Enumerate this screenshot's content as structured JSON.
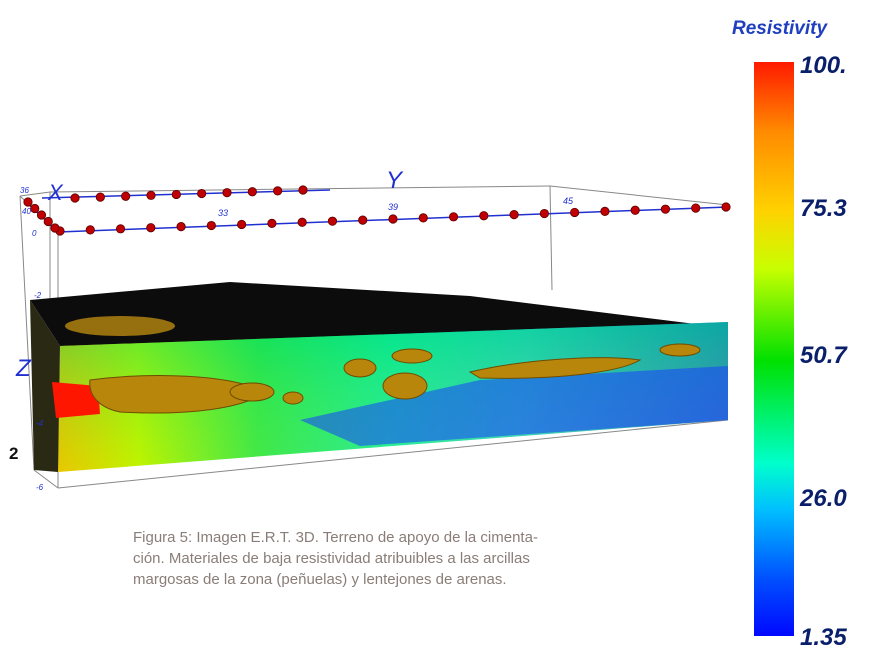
{
  "figure": {
    "axis_letters": {
      "x": "X",
      "y": "Y",
      "z": "Z"
    },
    "electrode_labels": [
      "33",
      "39",
      "45"
    ],
    "depth_labels": [
      "36",
      "40",
      "0",
      "-2",
      "-4",
      "-6"
    ]
  },
  "colorbar": {
    "title": "Resistivity",
    "ticks": [
      "100.",
      "75.3",
      "50.7",
      "26.0",
      "1.35"
    ],
    "colors": [
      "#ff1a00",
      "#ffd200",
      "#00e000",
      "#00ffcc",
      "#0008ff"
    ]
  },
  "page_number": "2",
  "caption": {
    "line1": "Figura 5: Imagen E.R.T. 3D. Terreno de apoyo de la cimenta-",
    "line2": "ción. Materiales de baja resistividad atribuibles a las arcillas",
    "line3": "margosas de la zona (peñuelas) y lentejones de arenas."
  }
}
